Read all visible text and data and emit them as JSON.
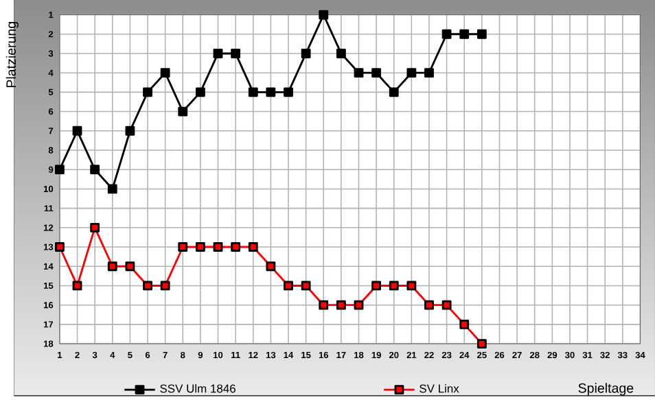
{
  "chart_data": {
    "type": "line",
    "ylabel": "Platzierung",
    "xlabel": "Spieltage",
    "x": [
      1,
      2,
      3,
      4,
      5,
      6,
      7,
      8,
      9,
      10,
      11,
      12,
      13,
      14,
      15,
      16,
      17,
      18,
      19,
      20,
      21,
      22,
      23,
      24,
      25
    ],
    "series": [
      {
        "name": "SSV Ulm 1846",
        "color": "#000000",
        "values": [
          9,
          7,
          9,
          10,
          7,
          5,
          4,
          6,
          5,
          3,
          3,
          5,
          5,
          5,
          3,
          1,
          3,
          4,
          4,
          5,
          4,
          4,
          2,
          2,
          2
        ]
      },
      {
        "name": "SV Linx",
        "color": "#ff0000",
        "values": [
          13,
          15,
          12,
          14,
          14,
          15,
          15,
          13,
          13,
          13,
          13,
          13,
          14,
          15,
          15,
          16,
          16,
          16,
          15,
          15,
          15,
          16,
          16,
          17,
          18
        ]
      }
    ],
    "xlim": [
      1,
      34
    ],
    "ylim": [
      18,
      1
    ],
    "xticks": [
      1,
      2,
      3,
      4,
      5,
      6,
      7,
      8,
      9,
      10,
      11,
      12,
      13,
      14,
      15,
      16,
      17,
      18,
      19,
      20,
      21,
      22,
      23,
      24,
      25,
      26,
      27,
      28,
      29,
      30,
      31,
      32,
      33,
      34
    ],
    "yticks": [
      1,
      2,
      3,
      4,
      5,
      6,
      7,
      8,
      9,
      10,
      11,
      12,
      13,
      14,
      15,
      16,
      17,
      18
    ],
    "grid": true,
    "legend": "bottom",
    "marker": "square",
    "line_style": "solid"
  }
}
